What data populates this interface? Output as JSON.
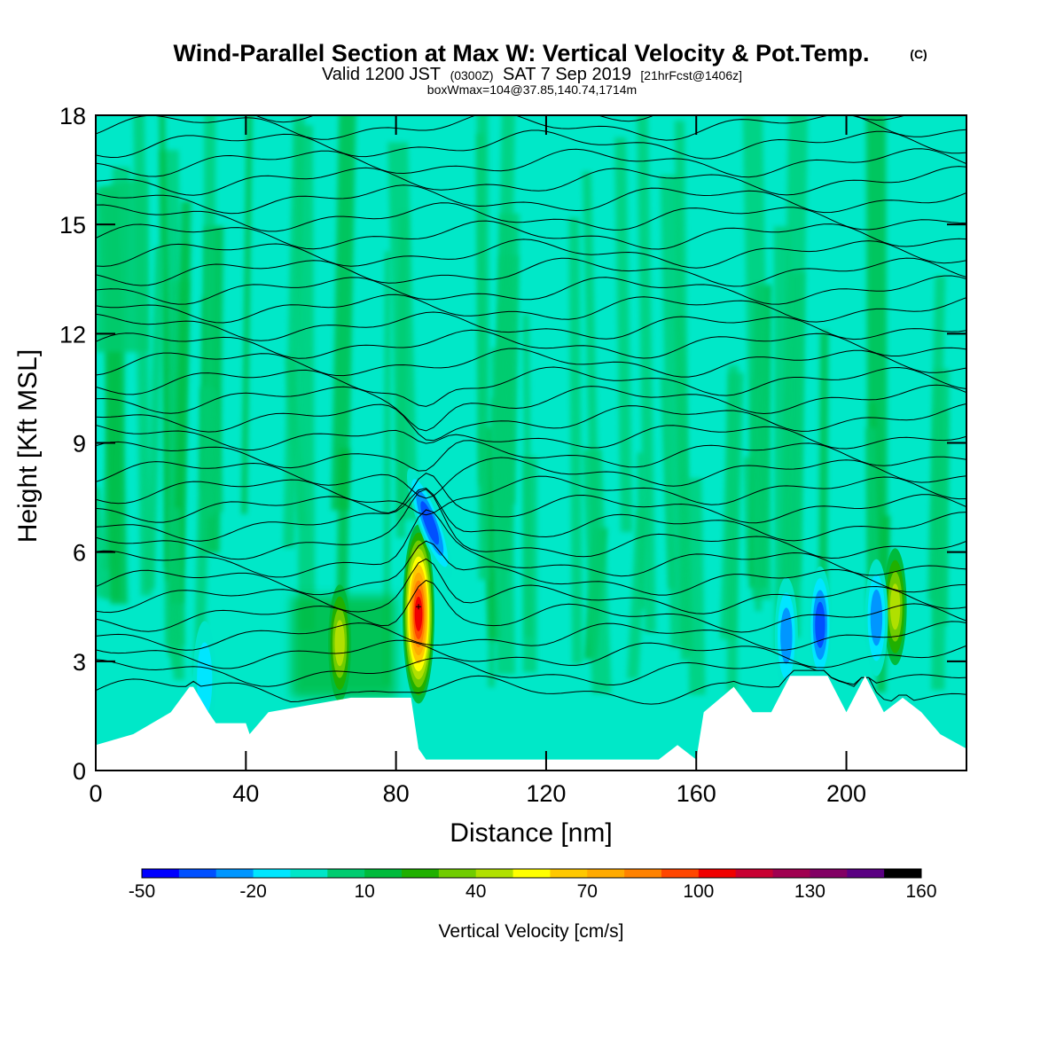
{
  "title": {
    "main": "Wind-Parallel Section at Max W: Vertical Velocity & Pot.Temp.",
    "main_tag": "(C)",
    "valid_prefix": "Valid 1200 JST",
    "valid_utc": "(0300Z)",
    "valid_date": "SAT 7 Sep 2019",
    "valid_fcst": "[21hrFcst@1406z]",
    "box": "boxWmax=104@37.85,140.74,1714m"
  },
  "colors": {
    "background_field": "#00e8c8",
    "terrain": "#ffffff",
    "contour": "#000000",
    "colorbar": [
      "#0000ff",
      "#0050ff",
      "#0096ff",
      "#00e6ff",
      "#00e6c8",
      "#00cc70",
      "#00bb3c",
      "#20b000",
      "#70cc00",
      "#b0e000",
      "#ffff00",
      "#ffc800",
      "#ffaa00",
      "#ff8200",
      "#ff4600",
      "#f00000",
      "#c80032",
      "#a00050",
      "#820064",
      "#5a0082"
    ]
  },
  "chart_data": {
    "type": "heatmap",
    "xlabel": "Distance [nm]",
    "ylabel": "Height [Kft MSL]",
    "xlim": [
      0,
      232
    ],
    "ylim": [
      0,
      18
    ],
    "x_ticks": [
      0,
      40,
      80,
      120,
      160,
      200
    ],
    "y_ticks": [
      0,
      3,
      6,
      9,
      12,
      15,
      18
    ],
    "colorbar": {
      "label": "Vertical Velocity [cm/s]",
      "levels": [
        -50,
        -40,
        -30,
        -20,
        -10,
        0,
        10,
        20,
        30,
        40,
        50,
        60,
        70,
        80,
        90,
        100,
        110,
        120,
        130,
        140,
        150,
        160
      ],
      "tick_labels": [
        "-50",
        "-20",
        "10",
        "40",
        "70",
        "100",
        "130",
        "160"
      ]
    },
    "max_w": {
      "x": 86,
      "y": 4.5,
      "value": 104
    },
    "terrain": {
      "x": [
        0,
        10,
        20,
        25,
        26,
        30,
        32,
        40,
        41,
        46,
        68,
        84,
        86,
        88,
        90,
        112,
        118,
        150,
        155,
        160,
        162,
        170,
        175,
        180,
        185,
        195,
        200,
        205,
        210,
        215,
        220,
        225,
        232
      ],
      "y": [
        0.7,
        1.0,
        1.6,
        2.3,
        2.3,
        1.6,
        1.3,
        1.3,
        1.0,
        1.6,
        2.0,
        2.0,
        0.6,
        0.3,
        0.3,
        0.3,
        0.3,
        0.3,
        0.7,
        0.3,
        1.6,
        2.3,
        1.6,
        1.6,
        2.6,
        2.6,
        1.6,
        2.6,
        1.6,
        2.0,
        1.6,
        1.0,
        0.6
      ]
    },
    "w_features": [
      {
        "x": 86,
        "y": 4.3,
        "value": 104
      },
      {
        "x": 89,
        "y": 6.8,
        "value": -40
      },
      {
        "x": 65,
        "y": 3.5,
        "value": 40
      },
      {
        "x": 213,
        "y": 4.5,
        "value": 40
      },
      {
        "x": 184,
        "y": 3.7,
        "value": -30
      },
      {
        "x": 193,
        "y": 4.0,
        "value": -40
      },
      {
        "x": 208,
        "y": 4.2,
        "value": -30
      },
      {
        "x": 29,
        "y": 2.5,
        "value": -20
      }
    ],
    "theta_levels": 34
  }
}
